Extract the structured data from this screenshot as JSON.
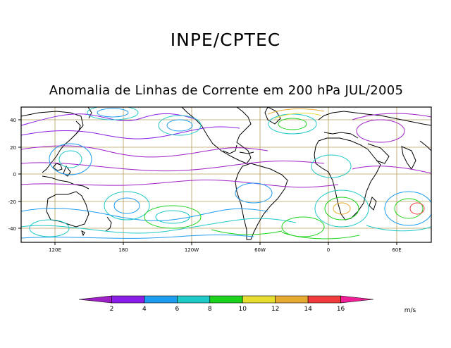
{
  "header": {
    "title": "INPE/CPTEC",
    "subtitle": "Anomalia de Linhas de Corrente em 200 hPa JUL/2005"
  },
  "map": {
    "lat_ticks": [
      "40",
      "20",
      "0",
      "-20",
      "-40"
    ],
    "lon_ticks": [
      "120E",
      "180",
      "120W",
      "60W",
      "0",
      "60E"
    ],
    "grid": true,
    "projection": "cylindrical, 100E to 90E, 50S to 50N"
  },
  "colorbar": {
    "labels": [
      "2",
      "4",
      "6",
      "8",
      "10",
      "12",
      "14",
      "16"
    ],
    "unit": "m/s",
    "colors": [
      "#a020c8",
      "#8a1ee6",
      "#1e9cf0",
      "#20c8c8",
      "#1ed21e",
      "#e6dc32",
      "#e6aa32",
      "#f03c3c",
      "#f01e96"
    ]
  }
}
